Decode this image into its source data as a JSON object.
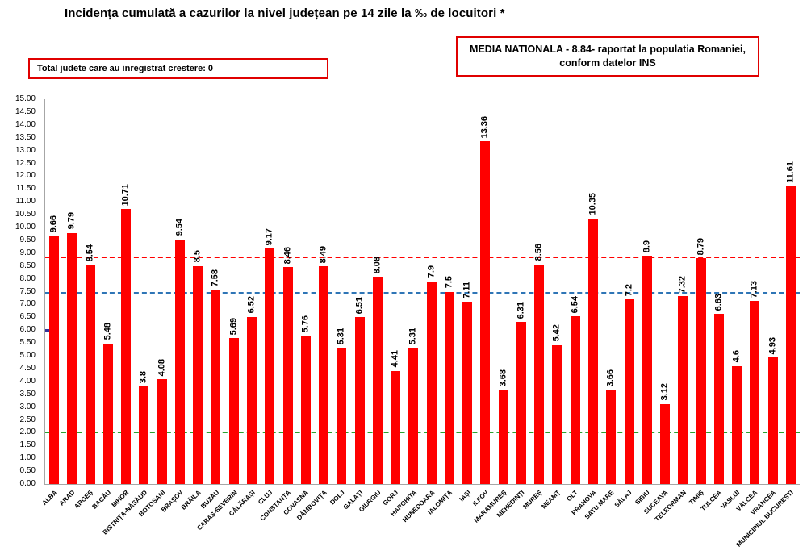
{
  "title": "Incidența cumulată a cazurilor la nivel județean pe 14 zile la ‰ de locuitori *",
  "info_box": {
    "label": "Total judete care au inregistrat crestere: 0"
  },
  "national_average_box": {
    "line1": "MEDIA NATIONALA - 8.84-  raportat la populatia  Romaniei,",
    "line2": "conform datelor INS"
  },
  "chart_data": {
    "type": "bar",
    "title": "Incidența cumulată a cazurilor la nivel județean pe 14 zile la ‰ de locuitori *",
    "xlabel": "",
    "ylabel": "",
    "ylim": [
      0,
      15
    ],
    "ytick_step": 0.5,
    "grid": false,
    "bar_color": "#ff0000",
    "categories": [
      "ALBA",
      "ARAD",
      "ARGEȘ",
      "BACĂU",
      "BIHOR",
      "BISTRIȚA-NĂSĂUD",
      "BOTOȘANI",
      "BRAȘOV",
      "BRĂILA",
      "BUZĂU",
      "CARAȘ-SEVERIN",
      "CĂLĂRAȘI",
      "CLUJ",
      "CONSTANȚA",
      "COVASNA",
      "DÂMBOVIȚA",
      "DOLJ",
      "GALAȚI",
      "GIURGIU",
      "GORJ",
      "HARGHITA",
      "HUNEDOARA",
      "IALOMIȚA",
      "IAȘI",
      "ILFOV",
      "MARAMUREȘ",
      "MEHEDINȚI",
      "MUREȘ",
      "NEAMȚ",
      "OLT",
      "PRAHOVA",
      "SATU MARE",
      "SĂLAJ",
      "SIBIU",
      "SUCEAVA",
      "TELEORMAN",
      "TIMIȘ",
      "TULCEA",
      "VASLUI",
      "VÂLCEA",
      "VRANCEA",
      "MUNICIPIUL BUCUREȘTI"
    ],
    "values": [
      9.66,
      9.79,
      8.54,
      5.48,
      10.71,
      3.8,
      4.08,
      9.54,
      8.5,
      7.58,
      5.69,
      6.52,
      9.17,
      8.46,
      5.76,
      8.49,
      5.31,
      6.51,
      8.08,
      4.41,
      5.31,
      7.9,
      7.5,
      7.11,
      13.36,
      3.68,
      6.31,
      8.56,
      5.42,
      6.54,
      10.35,
      3.66,
      7.2,
      8.9,
      3.12,
      7.32,
      8.79,
      6.63,
      4.6,
      7.13,
      4.93,
      11.61
    ],
    "reference_lines": [
      {
        "name": "national-average-reference",
        "value": 8.84,
        "color": "#ff0000",
        "style": "dashed"
      },
      {
        "name": "blue-reference",
        "value": 7.46,
        "color": "#2e75b6",
        "style": "dashed"
      },
      {
        "name": "green-reference",
        "value": 2.0,
        "color": "#2aa12e",
        "style": "dashed"
      }
    ],
    "axis_marker": {
      "value": 6.0,
      "color": "#333399"
    },
    "legend": "none"
  }
}
